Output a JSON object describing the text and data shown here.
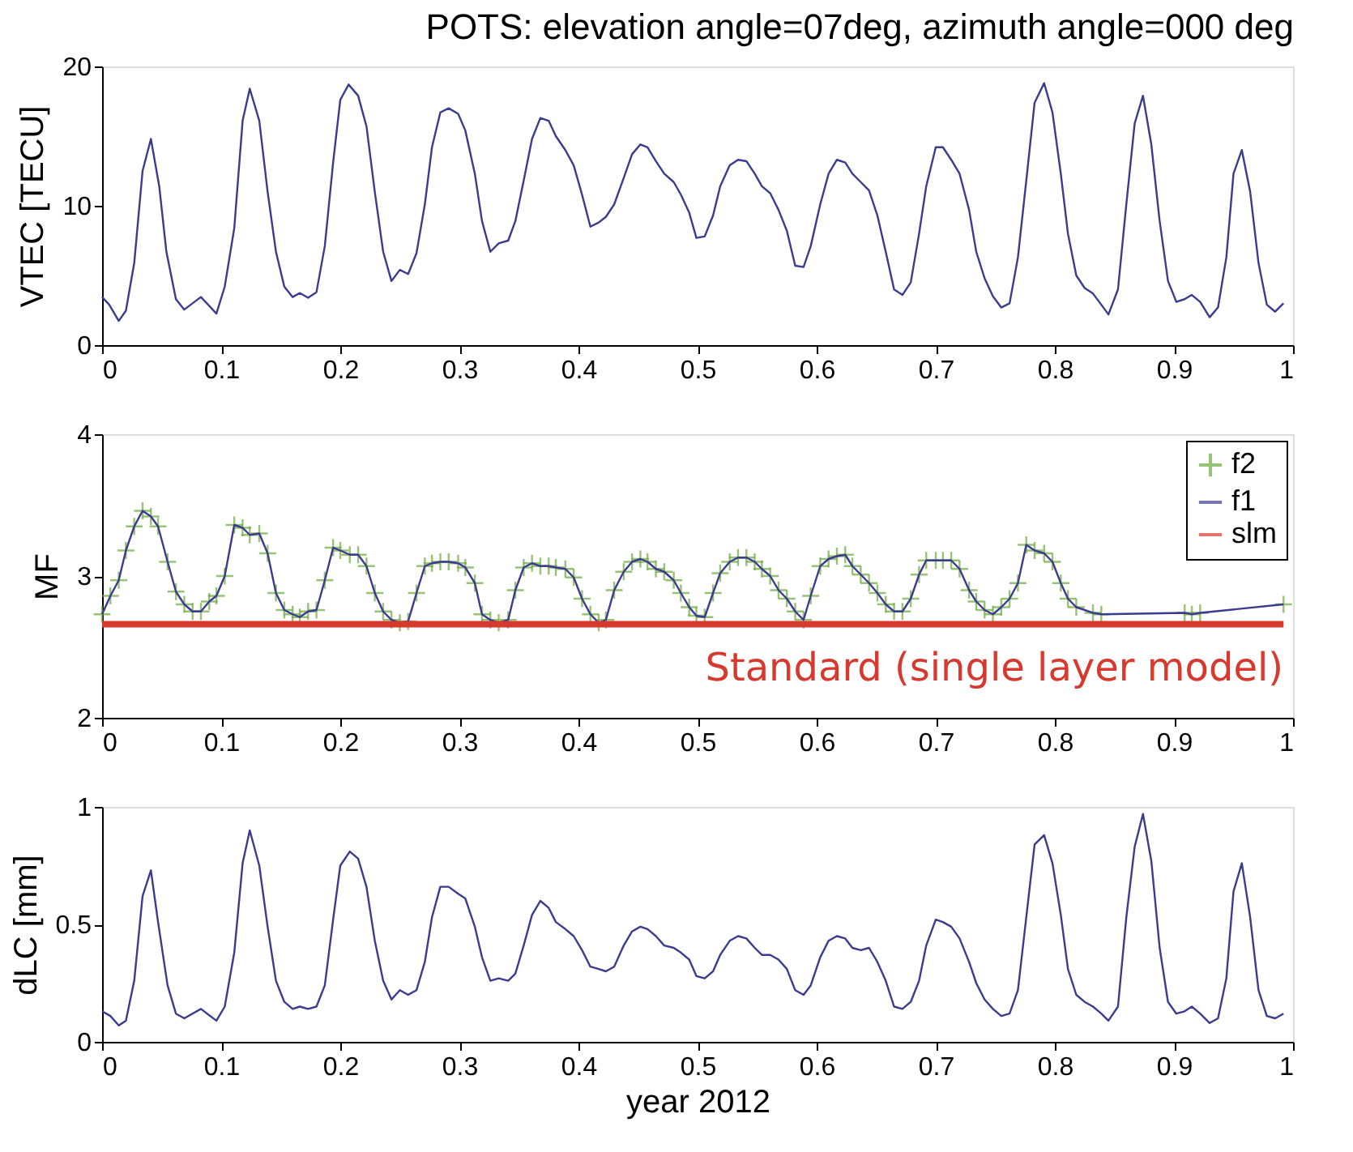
{
  "chart_data": [
    {
      "type": "line",
      "title": "POTS: elevation angle=07deg, azimuth angle=000 deg",
      "ylabel": "VTEC [TECU]",
      "xlim": [
        0,
        1
      ],
      "ylim": [
        0,
        20
      ],
      "xticks": [
        0,
        0.1,
        0.2,
        0.3,
        0.4,
        0.5,
        0.6,
        0.7,
        0.8,
        0.9,
        1
      ],
      "yticks": [
        0,
        10,
        20
      ],
      "grid": false,
      "legend": false,
      "x": [
        0,
        0.006,
        0.014,
        0.02,
        0.027,
        0.034,
        0.041,
        0.048,
        0.054,
        0.062,
        0.069,
        0.083,
        0.096,
        0.103,
        0.111,
        0.118,
        0.124,
        0.132,
        0.139,
        0.146,
        0.153,
        0.16,
        0.166,
        0.173,
        0.18,
        0.187,
        0.194,
        0.2,
        0.207,
        0.215,
        0.222,
        0.229,
        0.236,
        0.243,
        0.25,
        0.257,
        0.264,
        0.271,
        0.277,
        0.284,
        0.291,
        0.299,
        0.305,
        0.313,
        0.319,
        0.326,
        0.333,
        0.341,
        0.347,
        0.354,
        0.361,
        0.368,
        0.375,
        0.381,
        0.389,
        0.396,
        0.403,
        0.41,
        0.417,
        0.423,
        0.43,
        0.438,
        0.445,
        0.452,
        0.458,
        0.465,
        0.472,
        0.48,
        0.486,
        0.493,
        0.499,
        0.506,
        0.513,
        0.519,
        0.527,
        0.534,
        0.541,
        0.548,
        0.554,
        0.561,
        0.568,
        0.575,
        0.582,
        0.589,
        0.595,
        0.603,
        0.61,
        0.617,
        0.624,
        0.63,
        0.637,
        0.644,
        0.651,
        0.658,
        0.665,
        0.672,
        0.679,
        0.686,
        0.692,
        0.7,
        0.706,
        0.713,
        0.72,
        0.728,
        0.734,
        0.741,
        0.748,
        0.755,
        0.762,
        0.769,
        0.776,
        0.783,
        0.791,
        0.798,
        0.805,
        0.811,
        0.818,
        0.825,
        0.832,
        0.839,
        0.845,
        0.853,
        0.86,
        0.867,
        0.874,
        0.881,
        0.888,
        0.895,
        0.902,
        0.909,
        0.915,
        0.922,
        0.93,
        0.937,
        0.944,
        0.95,
        0.957,
        0.964,
        0.971,
        0.978,
        0.985,
        0.992
      ],
      "series": [
        {
          "color": "#3b3b8f",
          "values": [
            3.45,
            2.9,
            1.74,
            2.47,
            5.9,
            12.5,
            14.8,
            11.4,
            6.7,
            3.3,
            2.55,
            3.45,
            2.26,
            4.2,
            8.4,
            16.1,
            18.4,
            16.1,
            11.0,
            6.7,
            4.2,
            3.45,
            3.74,
            3.4,
            3.8,
            7.1,
            13.1,
            17.6,
            18.7,
            17.9,
            15.7,
            11.0,
            6.7,
            4.6,
            5.4,
            5.1,
            6.6,
            10.1,
            14.2,
            16.7,
            17.0,
            16.6,
            15.4,
            12.3,
            8.9,
            6.7,
            7.3,
            7.5,
            8.9,
            11.8,
            14.8,
            16.3,
            16.1,
            15.0,
            14.0,
            12.9,
            10.8,
            8.5,
            8.8,
            9.2,
            10.1,
            12.0,
            13.7,
            14.4,
            14.2,
            13.2,
            12.3,
            11.7,
            10.8,
            9.5,
            7.7,
            7.8,
            9.3,
            11.4,
            12.9,
            13.3,
            13.2,
            12.3,
            11.4,
            10.9,
            9.7,
            8.2,
            5.7,
            5.6,
            7.1,
            10.1,
            12.3,
            13.3,
            13.1,
            12.3,
            11.7,
            11.1,
            9.3,
            6.7,
            4.0,
            3.6,
            4.5,
            8.0,
            11.4,
            14.2,
            14.2,
            13.3,
            12.3,
            9.7,
            6.7,
            4.8,
            3.5,
            2.7,
            3.0,
            6.3,
            11.8,
            17.4,
            18.8,
            16.7,
            12.3,
            8.0,
            5.0,
            4.1,
            3.7,
            2.9,
            2.2,
            4.0,
            10.1,
            15.9,
            17.9,
            14.4,
            8.9,
            4.6,
            3.1,
            3.3,
            3.6,
            3.1,
            2.0,
            2.7,
            6.3,
            12.3,
            14.0,
            11.0,
            5.9,
            2.9,
            2.4,
            3.0
          ]
        }
      ]
    },
    {
      "type": "line",
      "ylabel": "MF",
      "xlim": [
        0,
        1
      ],
      "ylim": [
        2,
        4
      ],
      "xticks": [
        0,
        0.1,
        0.2,
        0.3,
        0.4,
        0.5,
        0.6,
        0.7,
        0.8,
        0.9,
        1
      ],
      "yticks": [
        2,
        3,
        4
      ],
      "grid": false,
      "legend": "top right",
      "annotations": [
        "Standard (single layer model)"
      ],
      "x": [
        0,
        0.007,
        0.014,
        0.02,
        0.027,
        0.034,
        0.041,
        0.047,
        0.055,
        0.062,
        0.069,
        0.076,
        0.083,
        0.09,
        0.096,
        0.103,
        0.111,
        0.118,
        0.124,
        0.132,
        0.139,
        0.146,
        0.153,
        0.16,
        0.166,
        0.173,
        0.18,
        0.187,
        0.194,
        0.2,
        0.208,
        0.215,
        0.222,
        0.229,
        0.236,
        0.243,
        0.25,
        0.257,
        0.264,
        0.271,
        0.277,
        0.284,
        0.291,
        0.299,
        0.305,
        0.313,
        0.319,
        0.326,
        0.333,
        0.341,
        0.347,
        0.354,
        0.361,
        0.368,
        0.375,
        0.381,
        0.389,
        0.396,
        0.403,
        0.41,
        0.417,
        0.423,
        0.43,
        0.438,
        0.445,
        0.452,
        0.458,
        0.465,
        0.472,
        0.48,
        0.486,
        0.493,
        0.499,
        0.506,
        0.513,
        0.519,
        0.527,
        0.534,
        0.541,
        0.548,
        0.554,
        0.561,
        0.568,
        0.575,
        0.582,
        0.589,
        0.595,
        0.603,
        0.61,
        0.617,
        0.624,
        0.63,
        0.637,
        0.644,
        0.651,
        0.658,
        0.665,
        0.672,
        0.679,
        0.686,
        0.692,
        0.7,
        0.706,
        0.713,
        0.72,
        0.728,
        0.734,
        0.741,
        0.748,
        0.755,
        0.762,
        0.769,
        0.776,
        0.783,
        0.791,
        0.798,
        0.805,
        0.811,
        0.818,
        0.825,
        0.832,
        0.839,
        0.845,
        0.853,
        0.86,
        0.867,
        0.874,
        0.881,
        0.888,
        0.895,
        0.902,
        0.909,
        0.915,
        0.922,
        0.93,
        0.937,
        0.944,
        0.95,
        0.957,
        0.964,
        0.971,
        0.978,
        0.985,
        0.992
      ],
      "series": [
        {
          "name": "f2",
          "type": "scatter",
          "marker": "cross",
          "color": "#6aaa3c",
          "values": [
            2.73,
            2.86,
            2.97,
            3.18,
            3.35,
            3.46,
            3.42,
            3.35,
            3.1,
            2.89,
            2.8,
            2.75,
            2.75,
            2.82,
            2.86,
            3.0,
            3.36,
            3.34,
            3.29,
            3.3,
            3.16,
            2.88,
            2.76,
            2.73,
            2.71,
            2.75,
            2.76,
            2.97,
            3.2,
            3.18,
            3.15,
            3.15,
            3.07,
            2.88,
            2.75,
            2.69,
            2.67,
            2.68,
            2.88,
            3.07,
            3.09,
            3.1,
            3.1,
            3.09,
            3.06,
            2.95,
            2.73,
            2.69,
            2.67,
            2.69,
            2.9,
            3.06,
            3.09,
            3.07,
            3.07,
            3.06,
            3.05,
            2.99,
            2.84,
            2.73,
            2.67,
            2.69,
            2.9,
            3.03,
            3.1,
            3.12,
            3.1,
            3.05,
            3.03,
            2.97,
            2.88,
            2.78,
            2.72,
            2.71,
            2.88,
            3.02,
            3.1,
            3.13,
            3.13,
            3.1,
            3.05,
            3.0,
            2.9,
            2.84,
            2.75,
            2.69,
            2.86,
            3.07,
            3.12,
            3.14,
            3.15,
            3.07,
            3.01,
            2.95,
            2.88,
            2.8,
            2.75,
            2.75,
            2.84,
            3.01,
            3.11,
            3.11,
            3.11,
            3.11,
            3.05,
            2.9,
            2.82,
            2.76,
            2.73,
            2.78,
            2.84,
            2.95,
            3.22,
            3.18,
            3.16,
            3.1,
            2.95,
            2.84,
            2.78,
            null,
            2.74,
            2.73,
            null,
            null,
            null,
            null,
            null,
            null,
            null,
            null,
            null,
            2.74,
            2.73,
            2.74,
            null,
            null,
            null,
            null,
            null,
            null,
            null,
            null,
            null,
            2.8
          ]
        },
        {
          "name": "f1",
          "type": "line",
          "marker": "none",
          "color": "#3b3b8f",
          "values": [
            2.73,
            2.86,
            2.97,
            3.18,
            3.35,
            3.46,
            3.42,
            3.35,
            3.1,
            2.89,
            2.8,
            2.75,
            2.75,
            2.82,
            2.86,
            3.0,
            3.36,
            3.34,
            3.29,
            3.3,
            3.16,
            2.88,
            2.76,
            2.73,
            2.71,
            2.75,
            2.76,
            2.97,
            3.2,
            3.18,
            3.15,
            3.15,
            3.07,
            2.88,
            2.75,
            2.69,
            2.67,
            2.68,
            2.88,
            3.07,
            3.09,
            3.1,
            3.1,
            3.09,
            3.06,
            2.95,
            2.73,
            2.69,
            2.67,
            2.69,
            2.9,
            3.06,
            3.09,
            3.07,
            3.07,
            3.06,
            3.05,
            2.99,
            2.84,
            2.73,
            2.67,
            2.69,
            2.9,
            3.03,
            3.1,
            3.12,
            3.1,
            3.05,
            3.03,
            2.97,
            2.88,
            2.78,
            2.72,
            2.71,
            2.88,
            3.02,
            3.1,
            3.13,
            3.13,
            3.1,
            3.05,
            3.0,
            2.9,
            2.84,
            2.75,
            2.69,
            2.86,
            3.07,
            3.12,
            3.14,
            3.15,
            3.07,
            3.01,
            2.95,
            2.88,
            2.8,
            2.75,
            2.75,
            2.84,
            3.01,
            3.11,
            3.11,
            3.11,
            3.11,
            3.05,
            2.9,
            2.82,
            2.76,
            2.73,
            2.78,
            2.84,
            2.95,
            3.22,
            3.18,
            3.16,
            3.1,
            2.95,
            2.84,
            2.78,
            null,
            2.74,
            2.73,
            null,
            null,
            null,
            null,
            null,
            null,
            null,
            null,
            null,
            2.74,
            2.73,
            2.74,
            null,
            null,
            null,
            null,
            null,
            null,
            null,
            null,
            null,
            2.8
          ]
        },
        {
          "name": "slm",
          "type": "line",
          "marker": "none",
          "color": "#d8392e",
          "x": [
            0,
            0.992
          ],
          "values": [
            2.66,
            2.66
          ]
        }
      ]
    },
    {
      "type": "line",
      "ylabel": "dLC [mm]",
      "xlabel": "year 2012",
      "xlim": [
        0,
        1
      ],
      "ylim": [
        0,
        1
      ],
      "xticks": [
        0,
        0.1,
        0.2,
        0.3,
        0.4,
        0.5,
        0.6,
        0.7,
        0.8,
        0.9,
        1
      ],
      "yticks": [
        0,
        0.5,
        1
      ],
      "grid": false,
      "legend": false,
      "x": [
        0,
        0.007,
        0.014,
        0.02,
        0.027,
        0.034,
        0.041,
        0.047,
        0.055,
        0.062,
        0.069,
        0.083,
        0.096,
        0.103,
        0.111,
        0.118,
        0.124,
        0.132,
        0.139,
        0.146,
        0.153,
        0.16,
        0.166,
        0.173,
        0.18,
        0.187,
        0.194,
        0.2,
        0.208,
        0.215,
        0.222,
        0.229,
        0.236,
        0.243,
        0.25,
        0.257,
        0.264,
        0.271,
        0.277,
        0.284,
        0.291,
        0.299,
        0.305,
        0.313,
        0.319,
        0.326,
        0.333,
        0.341,
        0.347,
        0.354,
        0.361,
        0.368,
        0.375,
        0.381,
        0.389,
        0.396,
        0.403,
        0.41,
        0.417,
        0.423,
        0.43,
        0.438,
        0.445,
        0.452,
        0.458,
        0.465,
        0.472,
        0.48,
        0.486,
        0.493,
        0.499,
        0.506,
        0.513,
        0.519,
        0.527,
        0.534,
        0.541,
        0.548,
        0.554,
        0.561,
        0.568,
        0.575,
        0.582,
        0.589,
        0.595,
        0.603,
        0.61,
        0.617,
        0.624,
        0.63,
        0.637,
        0.644,
        0.651,
        0.658,
        0.665,
        0.672,
        0.679,
        0.686,
        0.692,
        0.7,
        0.706,
        0.713,
        0.72,
        0.728,
        0.734,
        0.741,
        0.748,
        0.755,
        0.762,
        0.769,
        0.776,
        0.783,
        0.791,
        0.798,
        0.805,
        0.811,
        0.818,
        0.825,
        0.832,
        0.839,
        0.845,
        0.853,
        0.86,
        0.867,
        0.874,
        0.881,
        0.888,
        0.895,
        0.902,
        0.909,
        0.915,
        0.922,
        0.93,
        0.937,
        0.944,
        0.95,
        0.957,
        0.964,
        0.971,
        0.978,
        0.985,
        0.992
      ],
      "series": [
        {
          "color": "#3b3b8f",
          "values": [
            0.13,
            0.11,
            0.07,
            0.09,
            0.26,
            0.62,
            0.73,
            0.51,
            0.24,
            0.12,
            0.1,
            0.14,
            0.09,
            0.15,
            0.38,
            0.76,
            0.9,
            0.75,
            0.49,
            0.26,
            0.17,
            0.14,
            0.15,
            0.14,
            0.15,
            0.24,
            0.52,
            0.75,
            0.81,
            0.78,
            0.66,
            0.43,
            0.26,
            0.18,
            0.22,
            0.2,
            0.22,
            0.34,
            0.53,
            0.66,
            0.66,
            0.63,
            0.61,
            0.49,
            0.36,
            0.26,
            0.27,
            0.26,
            0.29,
            0.41,
            0.54,
            0.6,
            0.57,
            0.51,
            0.48,
            0.45,
            0.39,
            0.32,
            0.31,
            0.3,
            0.32,
            0.41,
            0.47,
            0.49,
            0.48,
            0.45,
            0.41,
            0.4,
            0.38,
            0.35,
            0.28,
            0.27,
            0.3,
            0.37,
            0.43,
            0.45,
            0.44,
            0.4,
            0.37,
            0.37,
            0.35,
            0.31,
            0.22,
            0.2,
            0.24,
            0.36,
            0.43,
            0.45,
            0.44,
            0.4,
            0.39,
            0.4,
            0.34,
            0.26,
            0.15,
            0.14,
            0.17,
            0.26,
            0.41,
            0.52,
            0.51,
            0.49,
            0.44,
            0.34,
            0.25,
            0.18,
            0.14,
            0.11,
            0.12,
            0.22,
            0.53,
            0.84,
            0.88,
            0.76,
            0.54,
            0.31,
            0.2,
            0.17,
            0.15,
            0.12,
            0.09,
            0.15,
            0.53,
            0.83,
            0.97,
            0.77,
            0.4,
            0.17,
            0.12,
            0.13,
            0.15,
            0.12,
            0.08,
            0.1,
            0.27,
            0.64,
            0.76,
            0.53,
            0.22,
            0.11,
            0.1,
            0.12
          ]
        }
      ]
    }
  ]
}
